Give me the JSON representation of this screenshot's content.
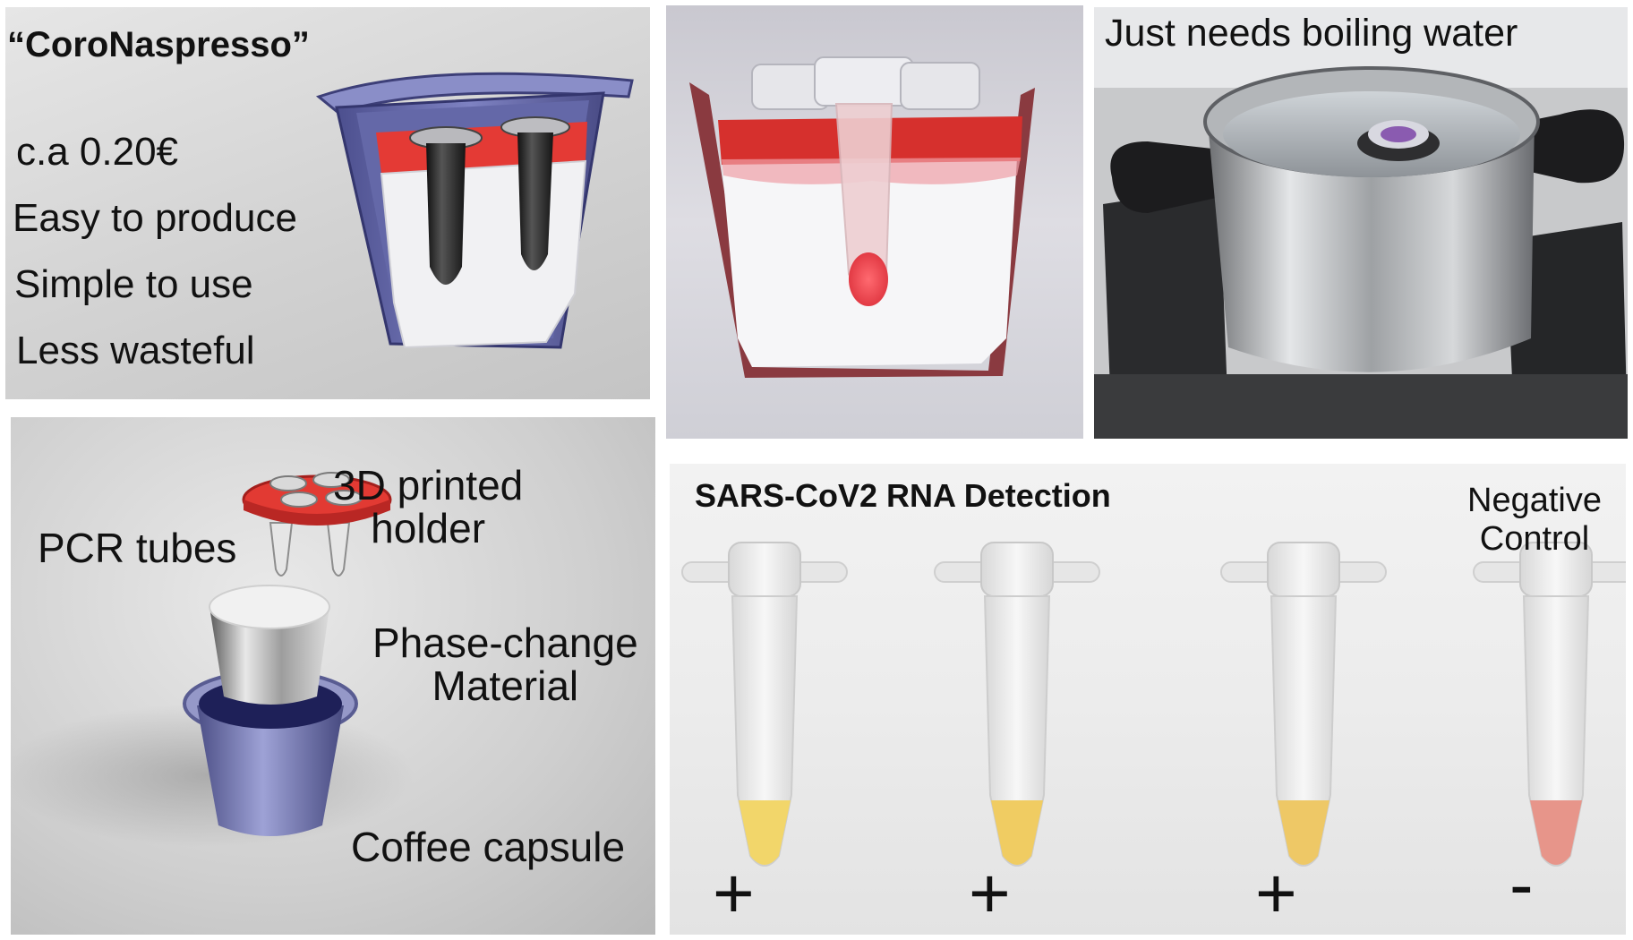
{
  "panel_capsule": {
    "title": "“CoroNaspresso”",
    "features": [
      "c.a 0.20€",
      "Easy to produce",
      "Simple to use",
      "Less wasteful"
    ]
  },
  "panel_pot": {
    "caption": "Just needs boiling water"
  },
  "panel_parts": {
    "pcr_tubes": "PCR tubes",
    "holder_line1": "3D printed",
    "holder_line2": "holder",
    "pcm_line1": "Phase-change",
    "pcm_line2": "Material",
    "capsule": "Coffee capsule"
  },
  "panel_results": {
    "title": "SARS-CoV2 RNA Detection",
    "negative_line1": "Negative",
    "negative_line2": "Control",
    "tubes": [
      {
        "sign": "+",
        "color": "#f2d66a"
      },
      {
        "sign": "+",
        "color": "#f0cc62"
      },
      {
        "sign": "+",
        "color": "#eec866"
      },
      {
        "sign": "-",
        "color": "#e7958a"
      }
    ]
  },
  "colors": {
    "holder_red": "#e0322f",
    "capsule_blue": "#7c80b8",
    "sample_red": "#f04a50"
  }
}
